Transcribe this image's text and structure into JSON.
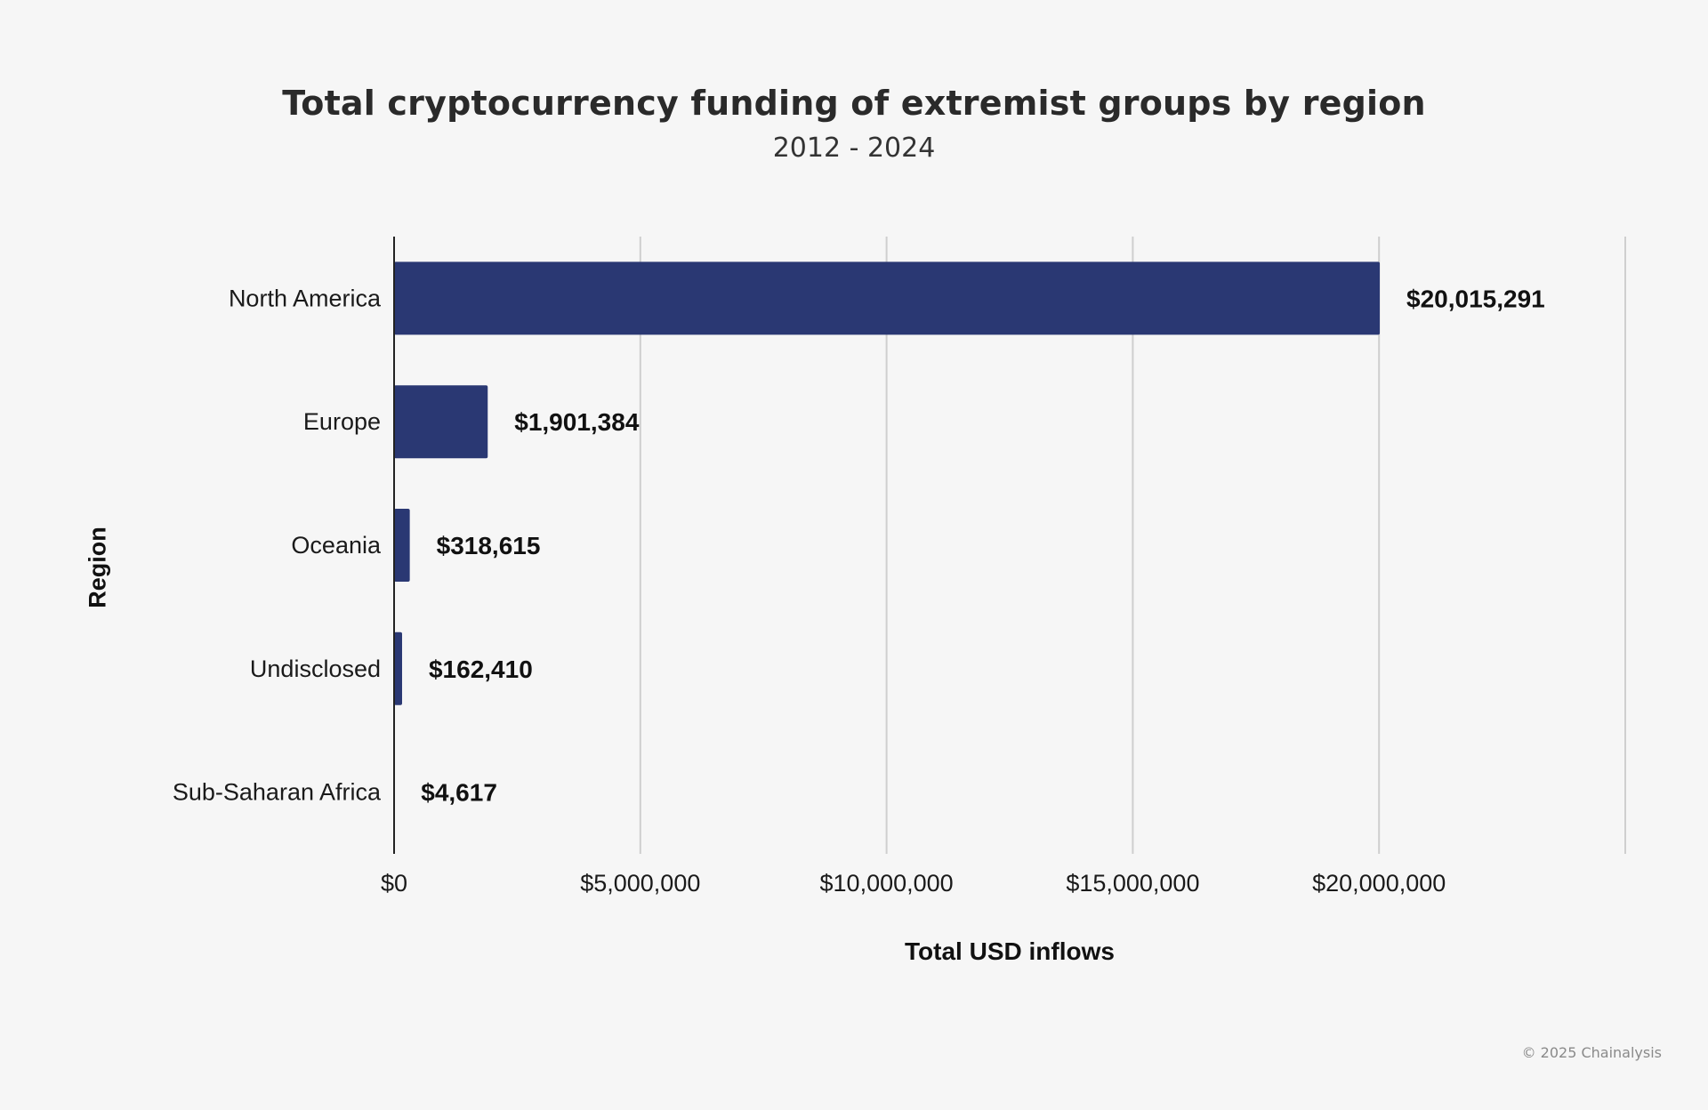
{
  "chart_data": {
    "type": "bar",
    "orientation": "horizontal",
    "title": "Total cryptocurrency funding of extremist groups by region",
    "subtitle": "2012 - 2024",
    "xlabel": "Total USD inflows",
    "ylabel": "Region",
    "categories": [
      "North America",
      "Europe",
      "Oceania",
      "Undisclosed",
      "Sub-Saharan Africa"
    ],
    "values": [
      20015291,
      1901384,
      318615,
      162410,
      4617
    ],
    "data_labels": [
      "$20,015,291",
      "$1,901,384",
      "$318,615",
      "$162,410",
      "$4,617"
    ],
    "xlim": [
      0,
      25000000
    ],
    "x_ticks": [
      0,
      5000000,
      10000000,
      15000000,
      20000000
    ],
    "x_tick_labels": [
      "$0",
      "$5,000,000",
      "$10,000,000",
      "$15,000,000",
      "$20,000,000"
    ],
    "grid": "vertical",
    "legend": "none",
    "bar_color": "#2a3873"
  },
  "footer": {
    "copyright": "© 2025 Chainalysis"
  }
}
